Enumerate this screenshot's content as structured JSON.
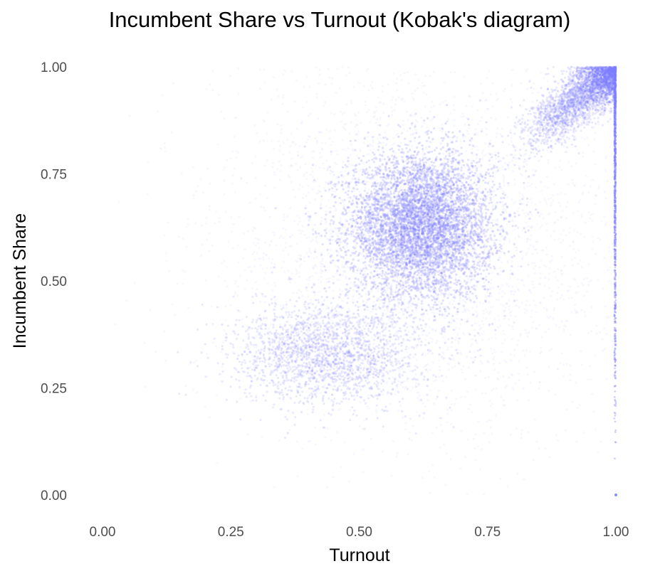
{
  "chart_data": {
    "type": "scatter",
    "title": "Incumbent Share vs Turnout (Kobak's diagram)",
    "xlabel": "Turnout",
    "ylabel": "Incumbent Share",
    "xlim": [
      0,
      1
    ],
    "ylim": [
      0,
      1
    ],
    "x_ticks": [
      "0.00",
      "0.25",
      "0.50",
      "0.75",
      "1.00"
    ],
    "y_ticks": [
      "0.00",
      "0.25",
      "0.50",
      "0.75",
      "1.00"
    ],
    "grid": false,
    "legend": "none",
    "point_color": "#7f7fff",
    "clusters": [
      {
        "name": "main",
        "x_center": 0.62,
        "y_center": 0.63,
        "x_spread": 0.07,
        "y_spread": 0.085,
        "weight": 0.42
      },
      {
        "name": "low",
        "x_center": 0.44,
        "y_center": 0.33,
        "x_spread": 0.09,
        "y_spread": 0.06,
        "weight": 0.15
      },
      {
        "name": "high",
        "x_center": 0.93,
        "y_center": 0.93,
        "x_spread": 0.05,
        "y_spread": 0.05,
        "weight": 0.17
      },
      {
        "name": "diffuse",
        "x_center": 0.62,
        "y_center": 0.58,
        "x_spread": 0.2,
        "y_spread": 0.22,
        "weight": 0.26
      }
    ],
    "vertical_band": {
      "x": 1.0,
      "y_range": [
        0.0,
        1.0
      ]
    }
  }
}
